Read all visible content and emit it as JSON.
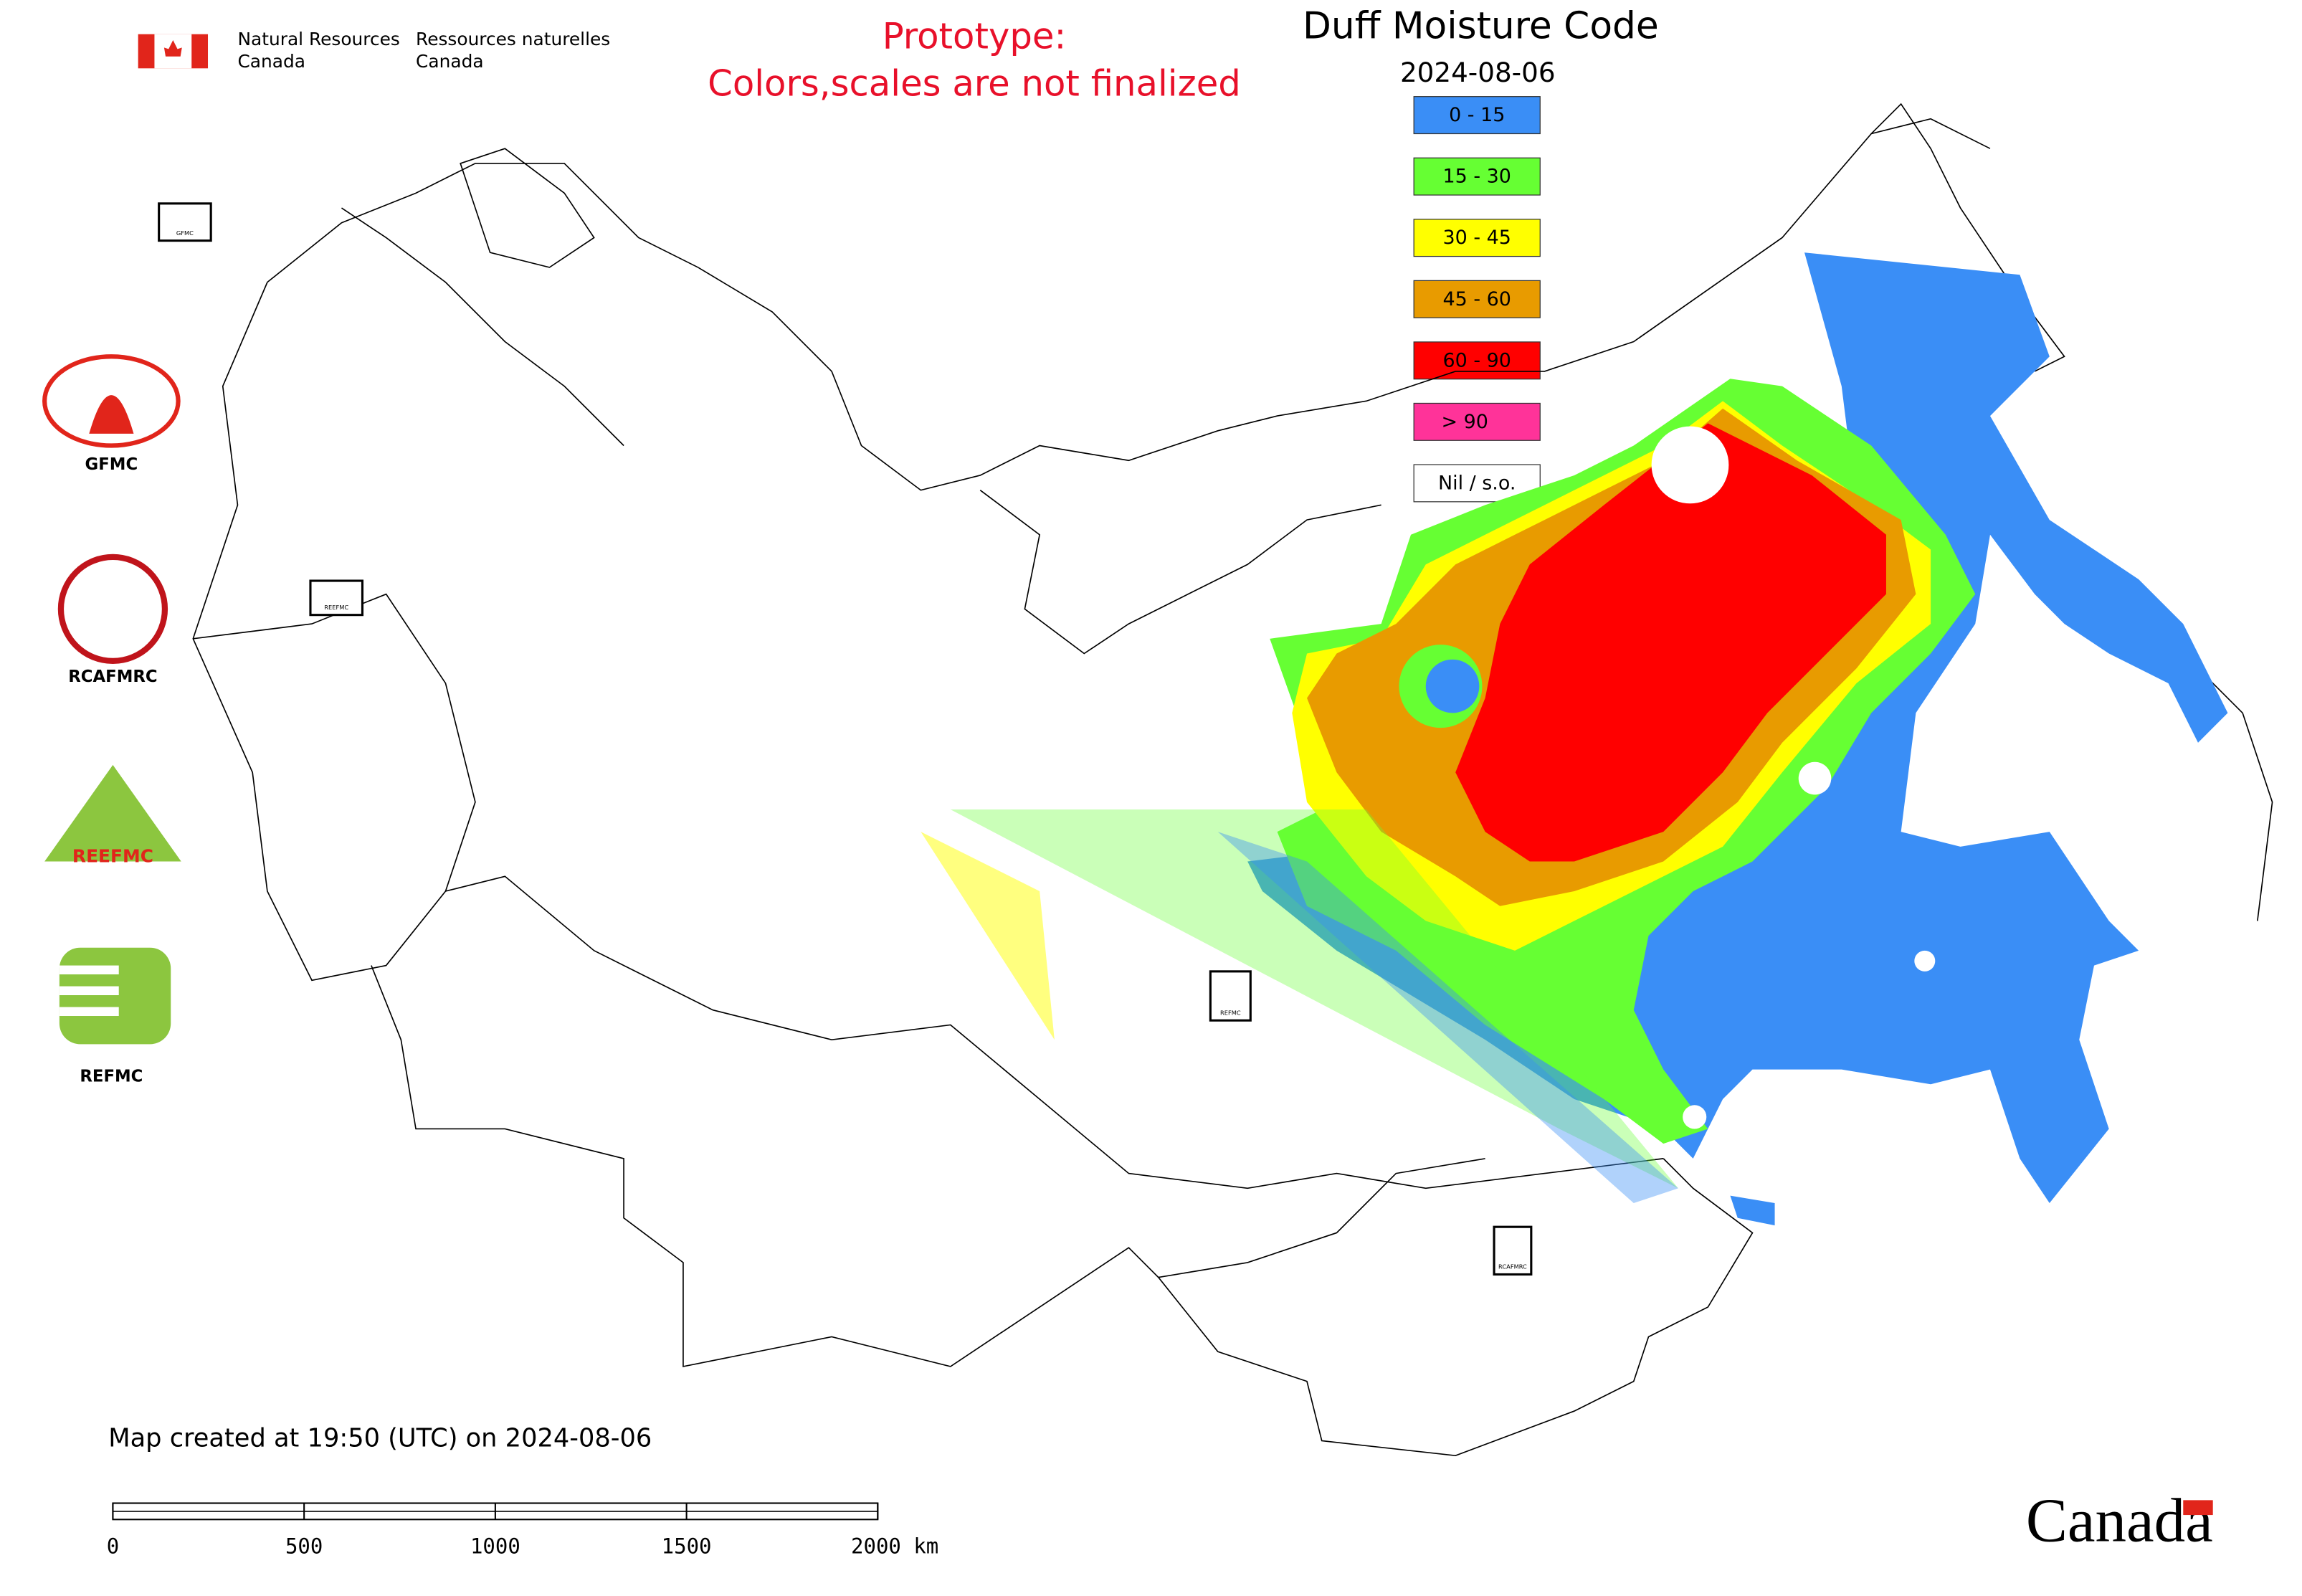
{
  "header": {
    "agency_en": [
      "Natural Resources",
      "Canada"
    ],
    "agency_fr": [
      "Ressources naturelles",
      "Canada"
    ]
  },
  "notice": [
    "Prototype:",
    "Colors,scales are not finalized"
  ],
  "title": "Duff Moisture Code",
  "date": "2024-08-06",
  "legend": [
    {
      "label": "0 - 15",
      "color": "#3a8ef6"
    },
    {
      "label": "15 - 30",
      "color": "#66ff33"
    },
    {
      "label": "30 - 45",
      "color": "#ffff00"
    },
    {
      "label": "45 - 60",
      "color": "#e89b00"
    },
    {
      "label": "60 - 90",
      "color": "#ff0000"
    },
    {
      "label": "> 90",
      "color": "#ff3399"
    },
    {
      "label": "Nil / s.o.",
      "color": "#ffffff"
    }
  ],
  "logos": [
    "GFMC",
    "RCAFMRC",
    "REEFMC",
    "REFMC"
  ],
  "map_markers": [
    "GFMC",
    "REEFMC",
    "REFMC",
    "RCAFMRC"
  ],
  "footer": "Map created at 19:50 (UTC) on 2024-08-06",
  "scale_bar": {
    "ticks": [
      {
        "value": 0,
        "label": "0"
      },
      {
        "value": 500,
        "label": "500"
      },
      {
        "value": 1000,
        "label": "1000"
      },
      {
        "value": 1500,
        "label": "1500"
      },
      {
        "value": 2000,
        "label": "2000 km"
      }
    ]
  },
  "wordmark": "Canada"
}
